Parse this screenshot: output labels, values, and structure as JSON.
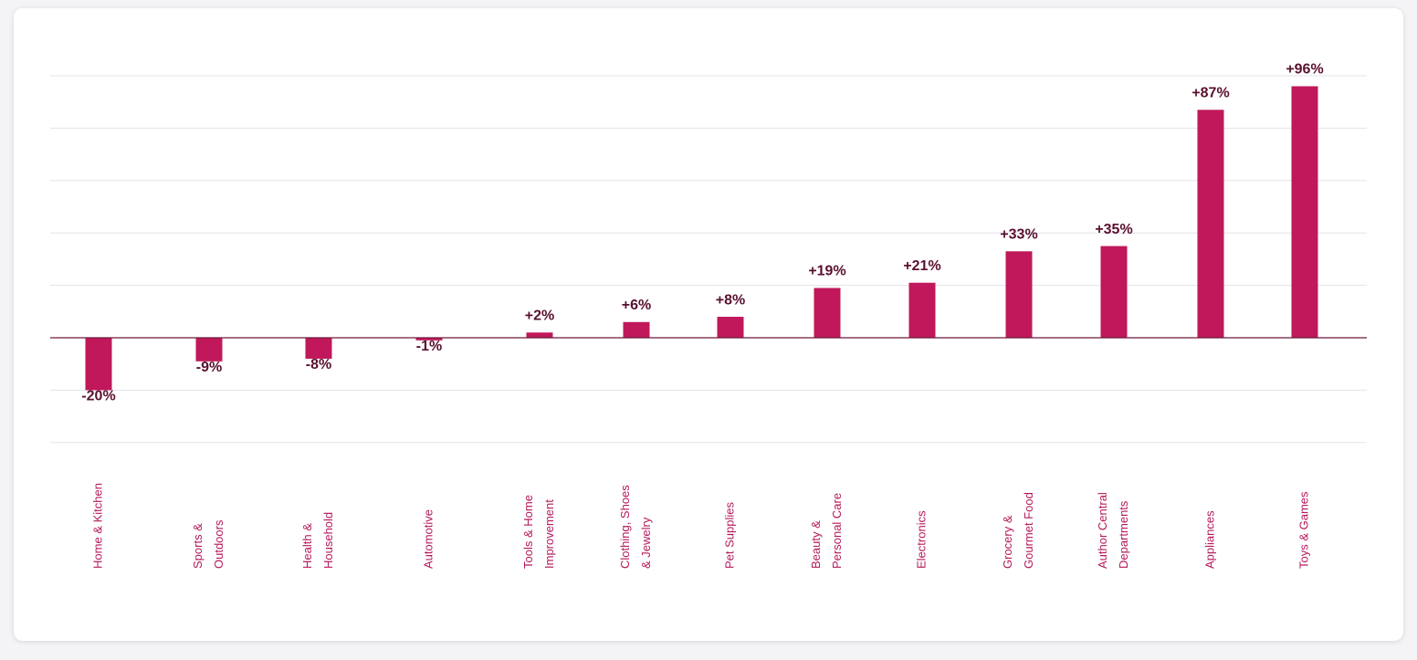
{
  "chart_data": {
    "type": "bar",
    "categories": [
      [
        "Home & Kitchen"
      ],
      [
        "Sports &",
        "Outdoors"
      ],
      [
        "Health &",
        "Household"
      ],
      [
        "Automotive"
      ],
      [
        "Tools & Home",
        "Improvement"
      ],
      [
        "Clothing, Shoes",
        "& Jewelry"
      ],
      [
        "Pet Supplies"
      ],
      [
        "Beauty &",
        "Personal Care"
      ],
      [
        "Electronics"
      ],
      [
        "Grocery &",
        "Gourmet Food"
      ],
      [
        "Author Central",
        "Departments"
      ],
      [
        "Appliances"
      ],
      [
        "Toys & Games"
      ]
    ],
    "values": [
      -20,
      -9,
      -8,
      -1,
      2,
      6,
      8,
      19,
      21,
      33,
      35,
      87,
      96
    ],
    "value_labels": [
      "-20%",
      "-9%",
      "-8%",
      "-1%",
      "+2%",
      "+6%",
      "+8%",
      "+19%",
      "+21%",
      "+33%",
      "+35%",
      "+87%",
      "+96%"
    ],
    "ylim": [
      -40,
      100
    ],
    "grid": true,
    "colors": {
      "bar": "#c0185a",
      "value_label": "#5a1030",
      "category_label": "#b5195a",
      "gridline": "#e3e3ec",
      "zero_line": "#6e1a3f"
    }
  }
}
